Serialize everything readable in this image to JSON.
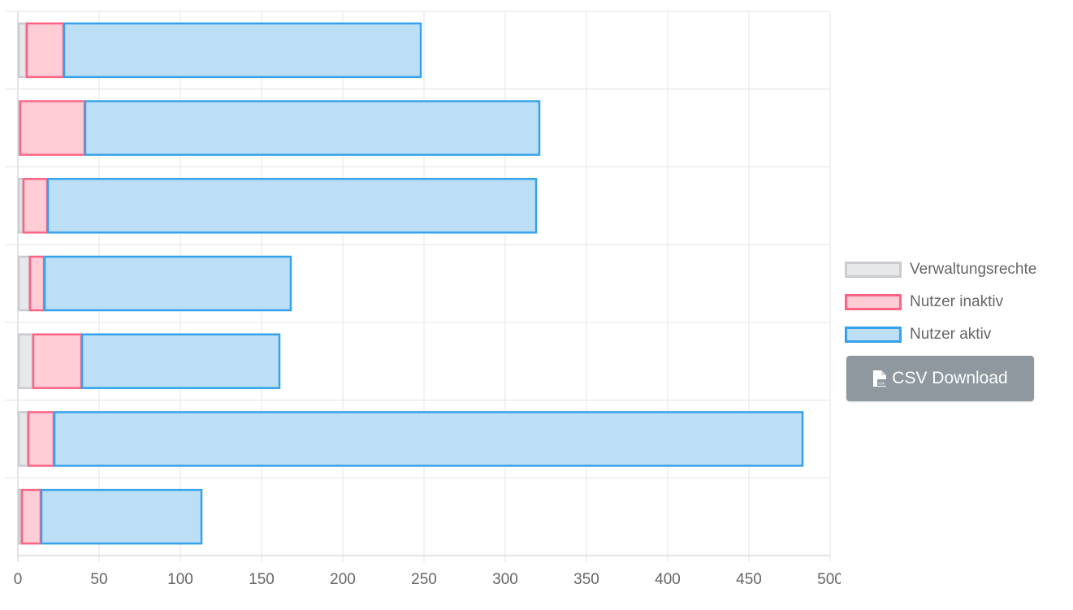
{
  "chart_data": {
    "type": "bar",
    "orientation": "horizontal",
    "stacked": true,
    "categories": [
      "",
      "",
      "",
      "",
      "",
      "",
      ""
    ],
    "series": [
      {
        "name": "Verwaltungsrechte",
        "color_fill": "#e7e8ea",
        "color_border": "#c9cbcf",
        "values": [
          5,
          1,
          3,
          7,
          9,
          6,
          2
        ]
      },
      {
        "name": "Nutzer inaktiv",
        "color_fill": "#ffcdd6",
        "color_border": "#ff6384",
        "values": [
          23,
          40,
          15,
          9,
          30,
          16,
          12
        ]
      },
      {
        "name": "Nutzer aktiv",
        "color_fill": "#bcdff6",
        "color_border": "#36a2eb",
        "values": [
          220,
          280,
          301,
          152,
          122,
          461,
          99
        ]
      }
    ],
    "xlim": [
      0,
      500
    ],
    "xticks": [
      "0",
      "50",
      "100",
      "150",
      "200",
      "250",
      "300",
      "350",
      "400",
      "450",
      "500"
    ],
    "grid": true,
    "legend_position": "right"
  },
  "csv_button": {
    "label": "CSV Download"
  }
}
